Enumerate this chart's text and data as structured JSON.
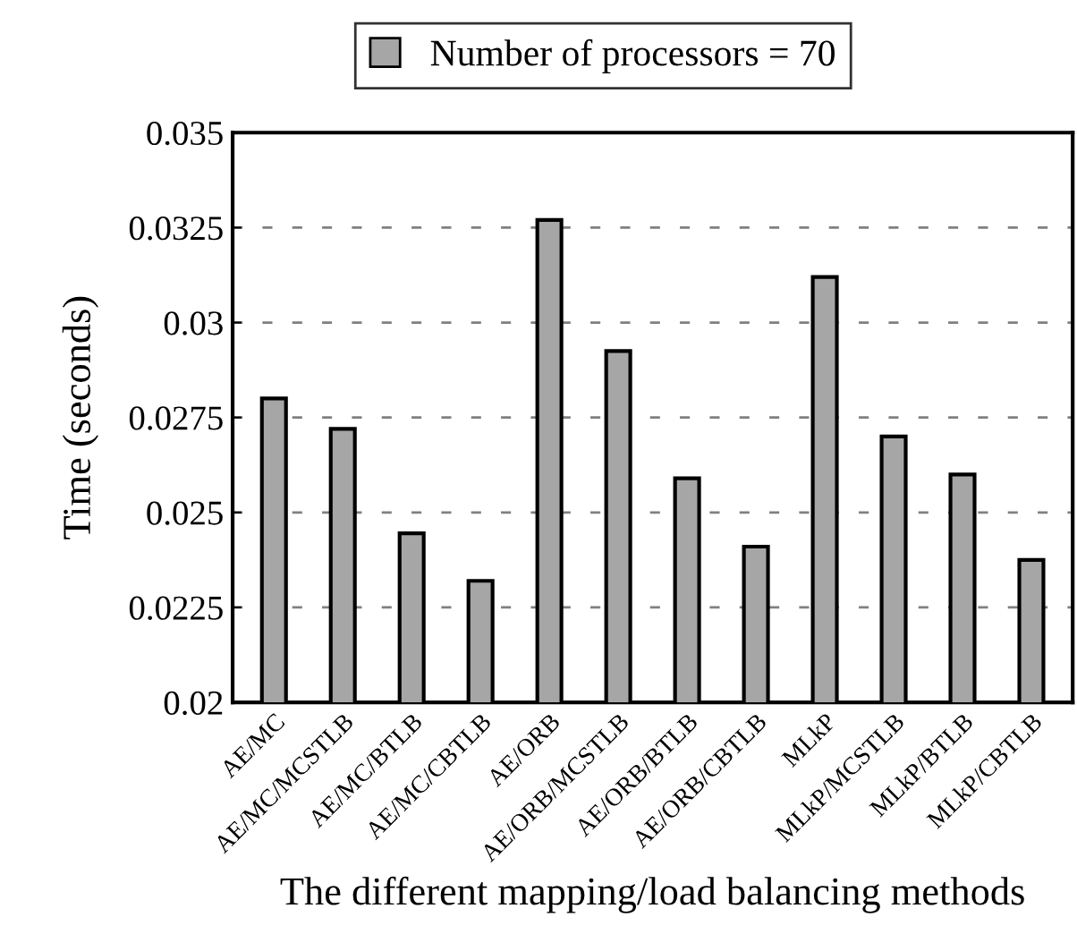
{
  "chart_data": {
    "type": "bar",
    "xlabel": "The different mapping/load balancing methods",
    "ylabel": "Time (seconds)",
    "categories": [
      "AE/MC",
      "AE/MC/MCSTLB",
      "AE/MC/BTLB",
      "AE/MC/CBTLB",
      "AE/ORB",
      "AE/ORB/MCSTLB",
      "AE/ORB/BTLB",
      "AE/ORB/CBTLB",
      "MLkP",
      "MLkP/MCSTLB",
      "MLkP/BTLB",
      "MLkP/CBTLB"
    ],
    "series": [
      {
        "name": "Number of processors = 70",
        "color": "#a6a6a6",
        "values": [
          0.028,
          0.0272,
          0.02445,
          0.0232,
          0.0327,
          0.02925,
          0.0259,
          0.0241,
          0.0312,
          0.027,
          0.026,
          0.02375
        ]
      }
    ],
    "ylim": [
      0.02,
      0.035
    ],
    "yticks": [
      0.02,
      0.0225,
      0.025,
      0.0275,
      0.03,
      0.0325,
      0.035
    ],
    "grid": "y",
    "legend": "top"
  }
}
